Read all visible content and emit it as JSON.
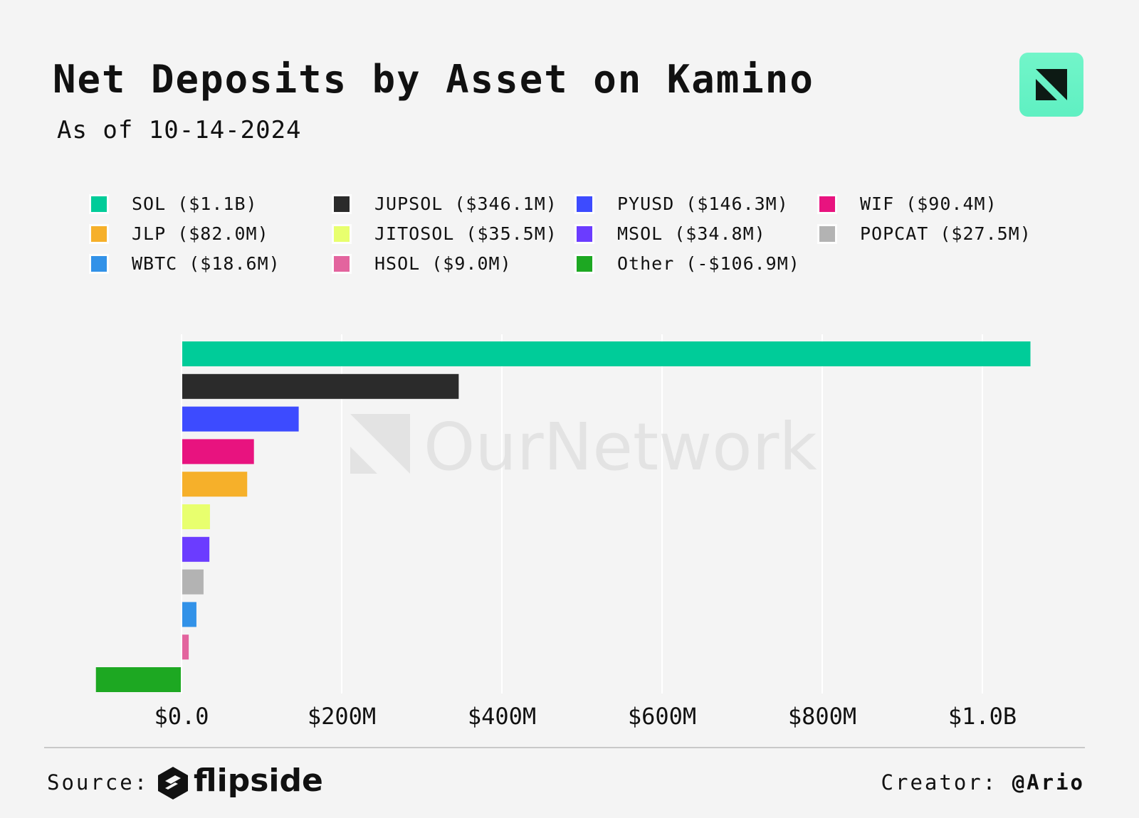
{
  "title": "Net Deposits by Asset on Kamino",
  "subtitle": "As of 10-14-2024",
  "brand": {
    "logo_icon": "ournetwork-logo-icon",
    "watermark": "OurNetwork",
    "badge_color": "#66f2c4"
  },
  "chart_data": {
    "type": "bar",
    "orientation": "horizontal",
    "categories": [
      "SOL",
      "JUPSOL",
      "PYUSD",
      "WIF",
      "JLP",
      "JITOSOL",
      "MSOL",
      "POPCAT",
      "WBTC",
      "HSOL",
      "Other"
    ],
    "values": [
      1060000000,
      346100000,
      146300000,
      90400000,
      82000000,
      35500000,
      34800000,
      27500000,
      18600000,
      9000000,
      -106900000
    ],
    "colors": [
      "#00cc99",
      "#2b2b2b",
      "#3d4bff",
      "#e8137f",
      "#f6b02a",
      "#e8ff6e",
      "#6b3cff",
      "#b3b3b3",
      "#3292e8",
      "#e3649e",
      "#1da822"
    ],
    "legend": [
      {
        "label": "SOL ($1.1B)",
        "color": "#00cc99"
      },
      {
        "label": "JUPSOL ($346.1M)",
        "color": "#2b2b2b"
      },
      {
        "label": "PYUSD ($146.3M)",
        "color": "#3d4bff"
      },
      {
        "label": "WIF ($90.4M)",
        "color": "#e8137f"
      },
      {
        "label": "JLP ($82.0M)",
        "color": "#f6b02a"
      },
      {
        "label": "JITOSOL ($35.5M)",
        "color": "#e8ff6e"
      },
      {
        "label": "MSOL ($34.8M)",
        "color": "#6b3cff"
      },
      {
        "label": "POPCAT ($27.5M)",
        "color": "#b3b3b3"
      },
      {
        "label": "WBTC ($18.6M)",
        "color": "#3292e8"
      },
      {
        "label": "HSOL ($9.0M)",
        "color": "#e3649e"
      },
      {
        "label": "Other (-$106.9M)",
        "color": "#1da822"
      }
    ],
    "legend_placement": "top",
    "xlim": [
      -170000000,
      1130000000
    ],
    "xticks": [
      0,
      200000000,
      400000000,
      600000000,
      800000000,
      1000000000
    ],
    "xtick_labels": [
      "$0.0",
      "$200M",
      "$400M",
      "$600M",
      "$800M",
      "$1.0B"
    ],
    "grid": "vertical"
  },
  "footer": {
    "source_label": "Source:",
    "source_name": "flipside",
    "creator_label": "Creator:",
    "creator_handle": "@Ario"
  }
}
